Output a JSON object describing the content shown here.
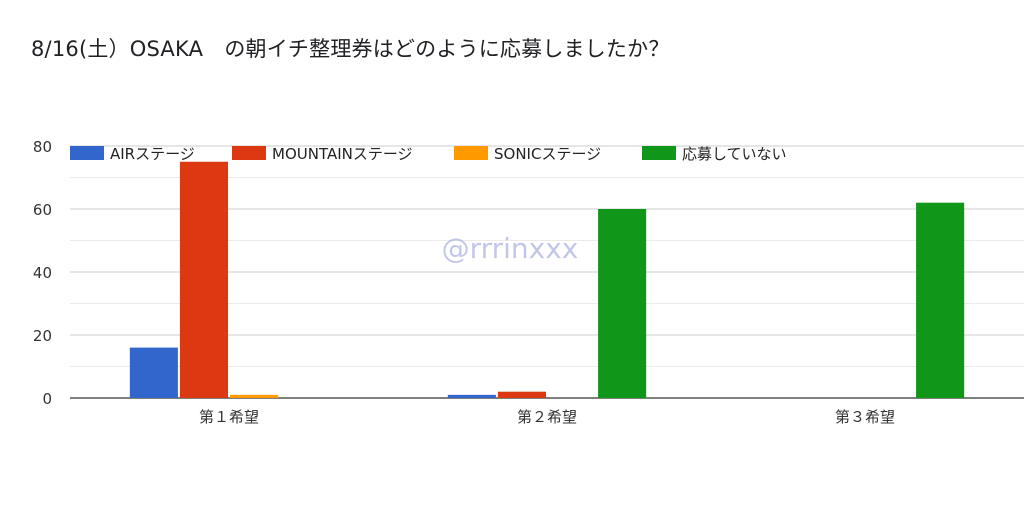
{
  "title": "8/16(土）OSAKA　の朝イチ整理券はどのように応募しましたか？",
  "watermark": "@rrrinxxx",
  "chart_data": {
    "type": "bar",
    "categories": [
      "第１希望",
      "第２希望",
      "第３希望"
    ],
    "series": [
      {
        "name": "AIRステージ",
        "color": "#3366cc",
        "values": [
          16,
          1,
          0
        ]
      },
      {
        "name": "MOUNTAINステージ",
        "color": "#dc3912",
        "values": [
          75,
          2,
          0
        ]
      },
      {
        "name": "SONICステージ",
        "color": "#ff9900",
        "values": [
          1,
          0,
          0
        ]
      },
      {
        "name": "応募していない",
        "color": "#109618",
        "values": [
          0,
          60,
          62
        ]
      }
    ],
    "ylim": [
      0,
      80
    ],
    "yticks": [
      0,
      20,
      40,
      60,
      80
    ],
    "grid": true,
    "legend_position": "top",
    "xlabel": "",
    "ylabel": ""
  }
}
